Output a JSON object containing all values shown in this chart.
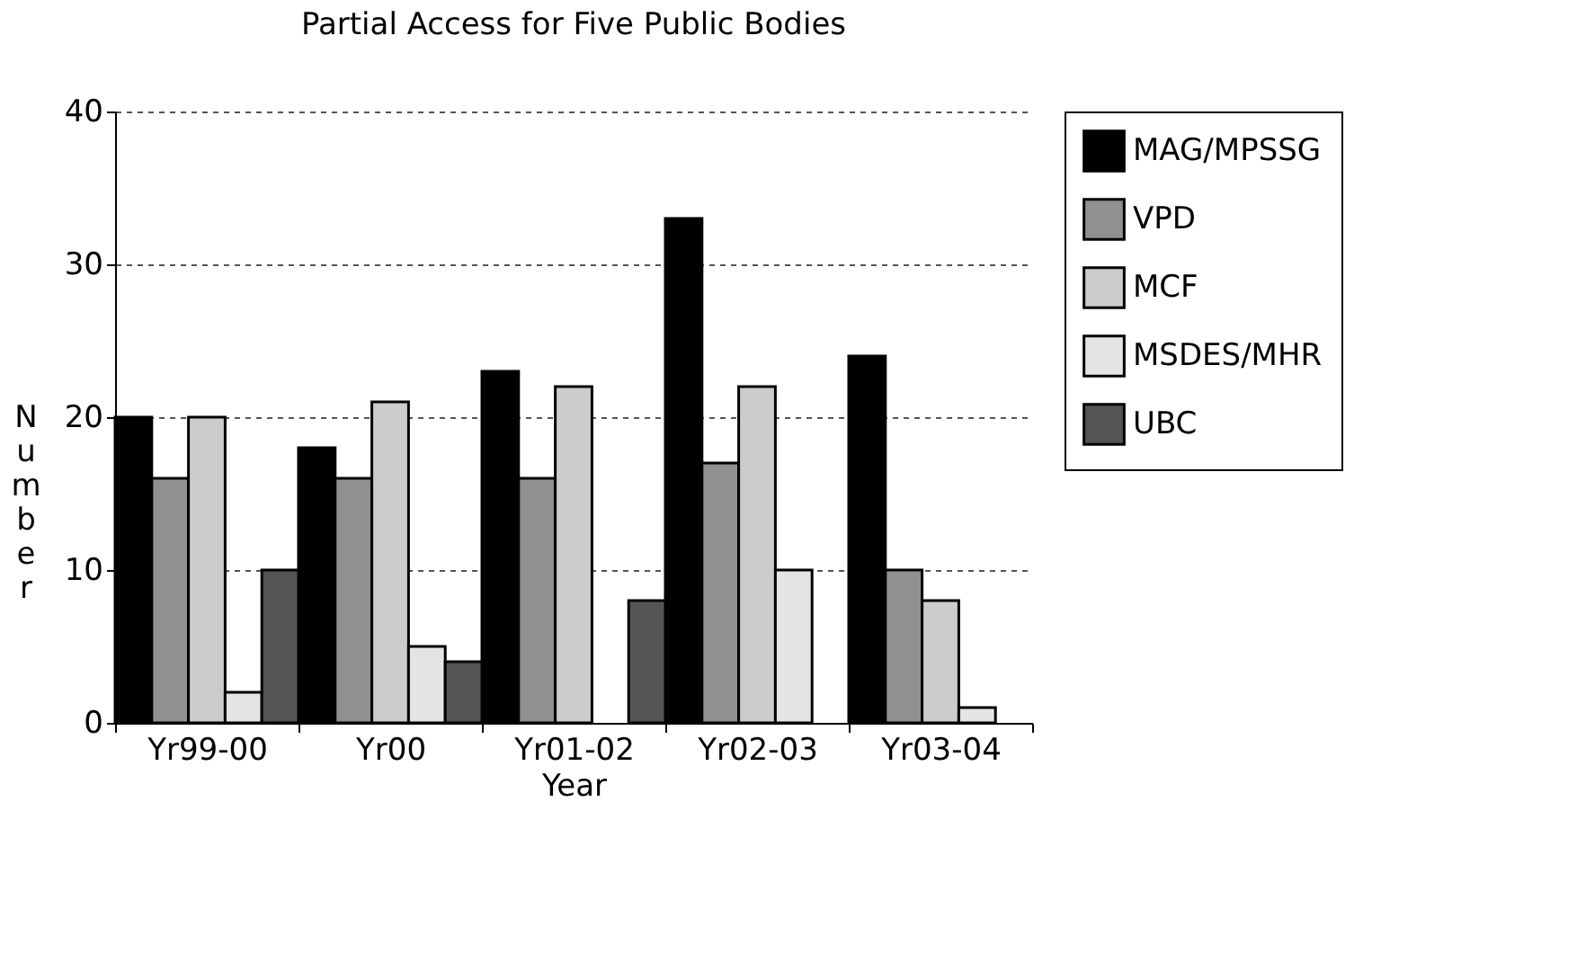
{
  "chart_data": {
    "type": "bar",
    "title": "Partial Access for Five Public Bodies",
    "xlabel": "Year",
    "ylabel": "Number",
    "categories": [
      "Yr99-00",
      "Yr00",
      "Yr01-02",
      "Yr02-03",
      "Yr03-04"
    ],
    "series": [
      {
        "name": "MAG/MPSSG",
        "color": "#000000",
        "values": [
          20,
          18,
          23,
          33,
          24
        ]
      },
      {
        "name": "VPD",
        "color": "#909090",
        "values": [
          16,
          16,
          16,
          17,
          10
        ]
      },
      {
        "name": "MCF",
        "color": "#cccccc",
        "values": [
          20,
          21,
          22,
          22,
          8
        ]
      },
      {
        "name": "MSDES/MHR",
        "color": "#e4e4e4",
        "values": [
          2,
          5,
          0,
          10,
          1
        ]
      },
      {
        "name": "UBC",
        "color": "#555555",
        "values": [
          10,
          4,
          8,
          0,
          0
        ]
      }
    ],
    "ylim": [
      0,
      40
    ],
    "yticks": [
      0,
      10,
      20,
      30,
      40
    ],
    "grid": "y",
    "legend": "top right"
  }
}
